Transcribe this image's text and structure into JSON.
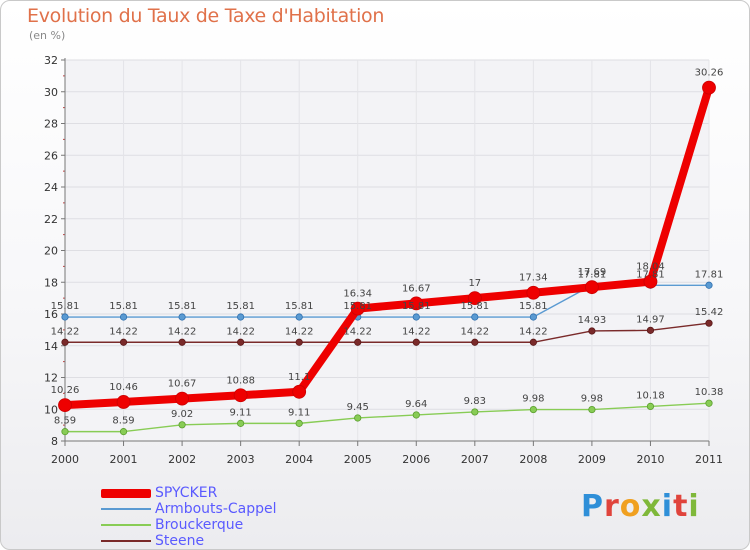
{
  "header": {
    "title": "Evolution du Taux de Taxe d'Habitation",
    "unit": "(en %)"
  },
  "logo": {
    "text": "Proxiti",
    "colors": [
      "#2f8fd8",
      "#e0443c",
      "#f0a020",
      "#7fb83a",
      "#2f8fd8",
      "#e0443c",
      "#7fb83a"
    ]
  },
  "chart_data": {
    "type": "line",
    "title": "Evolution du Taux de Taxe d'Habitation",
    "ylabel": "(en %)",
    "xlabel": "",
    "x": [
      "2000",
      "2001",
      "2002",
      "2003",
      "2004",
      "2005",
      "2006",
      "2007",
      "2008",
      "2009",
      "2010",
      "2011"
    ],
    "ylim": [
      8,
      32
    ],
    "yticks": [
      8,
      10,
      12,
      14,
      16,
      18,
      20,
      22,
      24,
      26,
      28,
      30,
      32
    ],
    "legend_position": "bottom-left",
    "series": [
      {
        "name": "SPYCKER",
        "color": "#ee0000",
        "values": [
          10.26,
          10.46,
          10.67,
          10.88,
          11.1,
          16.34,
          16.67,
          17,
          17.34,
          17.69,
          18.04,
          30.26
        ],
        "labels": [
          "10.26",
          "10.46",
          "10.67",
          "10.88",
          "11.1",
          "16.34",
          "16.67",
          "17",
          "17.34",
          "17.69",
          "18.04",
          "30.26"
        ]
      },
      {
        "name": "Armbouts-Cappel",
        "color": "#5a9ad2",
        "values": [
          15.81,
          15.81,
          15.81,
          15.81,
          15.81,
          15.81,
          15.81,
          15.81,
          15.81,
          17.81,
          17.81,
          17.81
        ],
        "labels": [
          "15.81",
          "15.81",
          "15.81",
          "15.81",
          "15.81",
          "15.81",
          "15.81",
          "15.81",
          "15.81",
          "17.81",
          "17.81",
          "17.81"
        ]
      },
      {
        "name": "Brouckerque",
        "color": "#88cc55",
        "values": [
          8.59,
          8.59,
          9.02,
          9.11,
          9.11,
          9.45,
          9.64,
          9.83,
          9.98,
          9.98,
          10.18,
          10.38
        ],
        "labels": [
          "8.59",
          "8.59",
          "9.02",
          "9.11",
          "9.11",
          "9.45",
          "9.64",
          "9.83",
          "9.98",
          "9.98",
          "10.18",
          "10.38"
        ]
      },
      {
        "name": "Steene",
        "color": "#7a2a2a",
        "values": [
          14.22,
          14.22,
          14.22,
          14.22,
          14.22,
          14.22,
          14.22,
          14.22,
          14.22,
          14.93,
          14.97,
          15.42
        ],
        "labels": [
          "14.22",
          "14.22",
          "14.22",
          "14.22",
          "14.22",
          "14.22",
          "14.22",
          "14.22",
          "14.22",
          "14.93",
          "14.97",
          "15.42"
        ]
      }
    ]
  }
}
